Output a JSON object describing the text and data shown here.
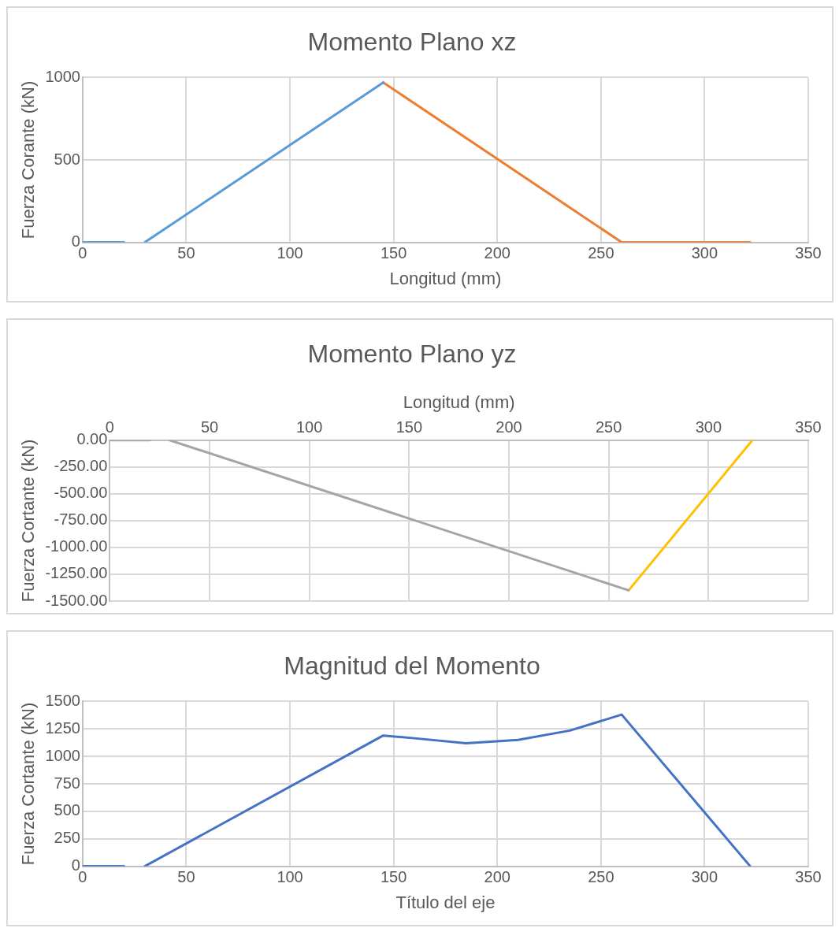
{
  "chart_data": [
    {
      "type": "line",
      "title": "Momento Plano xz",
      "xlabel": "Longitud (mm)",
      "ylabel": "Fuerza Corante (kN)",
      "xlim": [
        0,
        350
      ],
      "xticks": [
        0,
        50,
        100,
        150,
        200,
        250,
        300,
        350
      ],
      "ylim": [
        0,
        1000
      ],
      "yticks": [
        0,
        500,
        1000
      ],
      "grid": true,
      "legend": false,
      "marker": "none",
      "line_style": "solid",
      "series": [
        {
          "color": "#5b9bd5",
          "x": [
            0,
            20
          ],
          "values": [
            0,
            0
          ]
        },
        {
          "color": "#5b9bd5",
          "x": [
            30,
            145
          ],
          "values": [
            0,
            970
          ]
        },
        {
          "color": "#ed7d31",
          "x": [
            145,
            260,
            322
          ],
          "values": [
            970,
            0,
            0
          ]
        }
      ]
    },
    {
      "type": "line",
      "title": "Momento Plano yz",
      "xlabel": "Longitud (mm)",
      "ylabel": "Fuerza Cortante (kN)",
      "xlim": [
        0,
        350
      ],
      "xticks": [
        0,
        50,
        100,
        150,
        200,
        250,
        300,
        350
      ],
      "ylim": [
        -1500,
        0
      ],
      "yticks": [
        {
          "value": 0,
          "label": "0.00"
        },
        {
          "value": -250,
          "label": "-250.00"
        },
        {
          "value": -500,
          "label": "-500.00"
        },
        {
          "value": -750,
          "label": "-750.00"
        },
        {
          "value": -1000,
          "label": "-1000.00"
        },
        {
          "value": -1250,
          "label": "-1250.00"
        },
        {
          "value": -1500,
          "label": "-1500.00"
        }
      ],
      "grid": true,
      "legend": false,
      "marker": "none",
      "line_style": "solid",
      "series": [
        {
          "color": "#a5a5a5",
          "x": [
            0,
            20
          ],
          "values": [
            0,
            0
          ]
        },
        {
          "color": "#a5a5a5",
          "x": [
            30,
            260
          ],
          "values": [
            0,
            -1400
          ]
        },
        {
          "color": "#ffc000",
          "x": [
            260,
            322
          ],
          "values": [
            -1400,
            0
          ]
        }
      ]
    },
    {
      "type": "line",
      "title": "Magnitud del Momento",
      "xlabel": "Título del eje",
      "ylabel": "Fuerza Cortante (kN)",
      "xlim": [
        0,
        350
      ],
      "xticks": [
        0,
        50,
        100,
        150,
        200,
        250,
        300,
        350
      ],
      "ylim": [
        0,
        1500
      ],
      "yticks": [
        0,
        250,
        500,
        750,
        1000,
        1250,
        1500
      ],
      "grid": true,
      "legend": false,
      "marker": "none",
      "line_style": "solid",
      "series": [
        {
          "color": "#4472c4",
          "x": [
            0,
            20
          ],
          "values": [
            0,
            0
          ]
        },
        {
          "color": "#4472c4",
          "x": [
            30,
            145,
            160,
            185,
            210,
            235,
            260,
            322
          ],
          "values": [
            0,
            1190,
            1165,
            1120,
            1150,
            1235,
            1380,
            0
          ]
        }
      ]
    }
  ]
}
